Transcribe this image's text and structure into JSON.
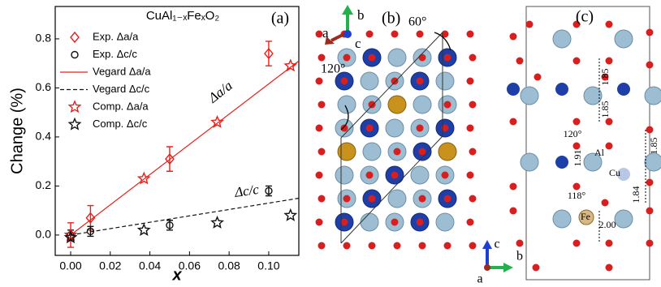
{
  "chart_data": {
    "type": "scatter",
    "title": "CuAl₁₋ₓFeₓO₂",
    "panel_label": "(a)",
    "x_label": "x",
    "y_label": "Change (%)",
    "xlim": [
      -0.0078,
      0.1152
    ],
    "ylim": [
      -0.083,
      0.932
    ],
    "xticks": [
      {
        "value": 0,
        "label": "0.00"
      },
      0.02,
      0.04,
      0.06,
      0.08,
      {
        "value": 0.1,
        "label": "0.10"
      }
    ],
    "yticks": [
      {
        "value": 0,
        "label": "0.0"
      },
      0.2,
      0.4,
      0.6,
      0.8
    ],
    "grid": false,
    "annotations": [
      {
        "text": "Δa/a",
        "x": 0.076,
        "y": 0.58
      },
      {
        "text": "Δc/c",
        "x": 0.089,
        "y": 0.175
      }
    ],
    "series": [
      {
        "name": "Exp. Δa/a",
        "color": "#e8201c",
        "marker": "diamond",
        "x": [
          0,
          0.01,
          0.05,
          0.1
        ],
        "values": [
          0.0,
          0.07,
          0.31,
          0.74
        ],
        "errors": [
          0.05,
          0.05,
          0.05,
          0.05
        ]
      },
      {
        "name": "Exp. Δc/c",
        "color": "#111111",
        "marker": "circle",
        "x": [
          0,
          0.01,
          0.05,
          0.1
        ],
        "values": [
          0.0,
          0.015,
          0.04,
          0.18
        ],
        "errors": [
          0.02,
          0.02,
          0.02,
          0.02
        ]
      },
      {
        "name": "Vegard Δa/a",
        "color": "#e8201c",
        "marker": "line",
        "dash": false,
        "x": [
          0,
          0.1152
        ],
        "values": [
          0,
          0.71
        ]
      },
      {
        "name": "Vegard Δc/c",
        "color": "#111111",
        "marker": "line",
        "dash": true,
        "x": [
          0,
          0.1152
        ],
        "values": [
          0,
          0.15
        ]
      },
      {
        "name": "Comp. Δa/a",
        "color": "#e8201c",
        "marker": "star",
        "x": [
          0,
          0.037,
          0.074,
          0.111
        ],
        "values": [
          0.0,
          0.23,
          0.46,
          0.69
        ]
      },
      {
        "name": "Comp. Δc/c",
        "color": "#111111",
        "marker": "star",
        "x": [
          0,
          0.037,
          0.074,
          0.111
        ],
        "values": [
          -0.01,
          0.02,
          0.05,
          0.08
        ]
      }
    ]
  },
  "panel_b": {
    "label": "(b)",
    "axis_a": "a",
    "axis_b": "b",
    "axis_c": "c",
    "angle_top": "60°",
    "angle_left": "120°"
  },
  "panel_c": {
    "label": "(c)",
    "d1": "1.85",
    "d2": "1.85",
    "angle1": "120°",
    "al": "Al",
    "d3": "1.91",
    "cu": "Cu",
    "d4": "1.85",
    "d5": "1.84",
    "angle2": "118°",
    "fe": "Fe",
    "d6": "2.00",
    "axis_c": "c",
    "axis_b": "b",
    "axis_a": "a"
  }
}
